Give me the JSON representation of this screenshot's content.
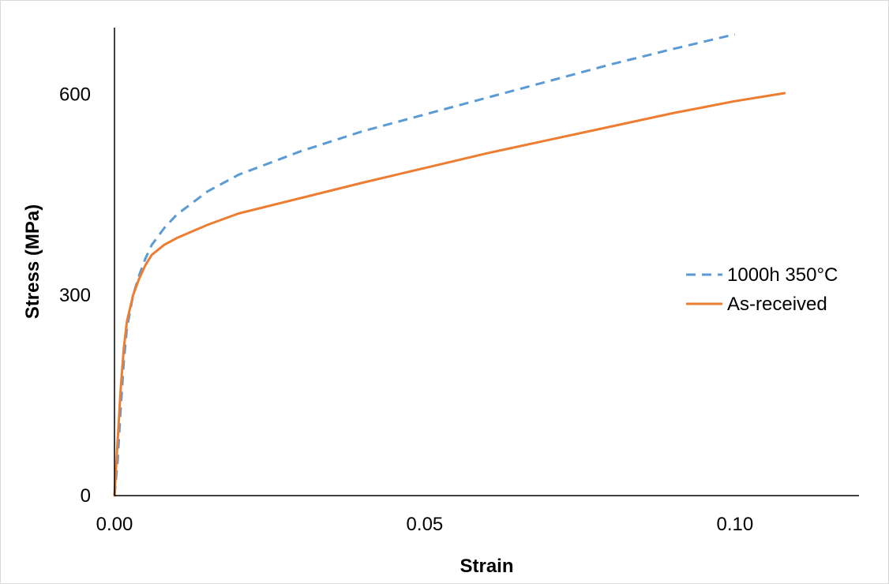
{
  "chart_data": {
    "type": "line",
    "title": "",
    "xlabel": "Strain",
    "ylabel": "Stress (MPa)",
    "xlim": [
      0,
      0.12
    ],
    "ylim": [
      0,
      700
    ],
    "x_ticks": [
      0.0,
      0.05,
      0.1
    ],
    "x_tick_labels": [
      "0.00",
      "0.05",
      "0.10"
    ],
    "y_ticks": [
      0,
      300,
      600
    ],
    "y_tick_labels": [
      "0",
      "300",
      "600"
    ],
    "grid": false,
    "legend_position": "right",
    "series": [
      {
        "name": "1000h 350°C",
        "color": "#5b9bd5",
        "line_style": "dashed",
        "points": [
          [
            0.0,
            0
          ],
          [
            0.0005,
            50
          ],
          [
            0.001,
            130
          ],
          [
            0.0015,
            200
          ],
          [
            0.002,
            250
          ],
          [
            0.003,
            300
          ],
          [
            0.004,
            330
          ],
          [
            0.005,
            355
          ],
          [
            0.006,
            375
          ],
          [
            0.008,
            400
          ],
          [
            0.01,
            420
          ],
          [
            0.015,
            455
          ],
          [
            0.02,
            480
          ],
          [
            0.03,
            515
          ],
          [
            0.04,
            545
          ],
          [
            0.05,
            570
          ],
          [
            0.06,
            595
          ],
          [
            0.07,
            620
          ],
          [
            0.08,
            645
          ],
          [
            0.09,
            668
          ],
          [
            0.1,
            690
          ]
        ]
      },
      {
        "name": "As-received",
        "color": "#ed7d31",
        "line_style": "solid",
        "points": [
          [
            0.0,
            0
          ],
          [
            0.0005,
            80
          ],
          [
            0.001,
            160
          ],
          [
            0.0015,
            220
          ],
          [
            0.002,
            260
          ],
          [
            0.003,
            300
          ],
          [
            0.004,
            325
          ],
          [
            0.005,
            345
          ],
          [
            0.006,
            360
          ],
          [
            0.008,
            375
          ],
          [
            0.01,
            385
          ],
          [
            0.015,
            405
          ],
          [
            0.02,
            422
          ],
          [
            0.03,
            445
          ],
          [
            0.04,
            468
          ],
          [
            0.05,
            490
          ],
          [
            0.06,
            512
          ],
          [
            0.07,
            532
          ],
          [
            0.08,
            552
          ],
          [
            0.09,
            572
          ],
          [
            0.1,
            590
          ],
          [
            0.108,
            602
          ]
        ]
      }
    ]
  }
}
